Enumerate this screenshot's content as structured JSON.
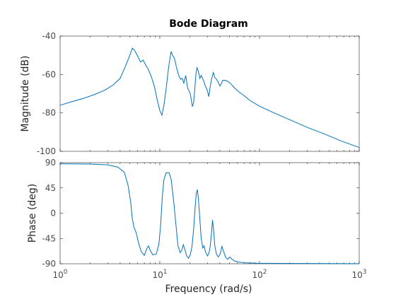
{
  "chart_data": {
    "type": "line",
    "title": "Bode Diagram",
    "xlabel": "Frequency  (rad/s)",
    "x_scale": "log",
    "xlim": [
      1,
      1000
    ],
    "x_ticks": [
      {
        "value": 1,
        "mantissa": "10",
        "exponent": "0"
      },
      {
        "value": 10,
        "mantissa": "10",
        "exponent": "1"
      },
      {
        "value": 100,
        "mantissa": "10",
        "exponent": "2"
      },
      {
        "value": 1000,
        "mantissa": "10",
        "exponent": "3"
      }
    ],
    "grid": false,
    "line_color": "#0072BD",
    "subplots": [
      {
        "name": "magnitude",
        "ylabel": "Magnitude (dB)",
        "ylim": [
          -100,
          -40
        ],
        "y_ticks": [
          "-100",
          "-80",
          "-60",
          "-40"
        ],
        "points": [
          [
            1,
            -76
          ],
          [
            1.3,
            -74.2
          ],
          [
            1.7,
            -72.5
          ],
          [
            2.2,
            -70.5
          ],
          [
            2.8,
            -68.2
          ],
          [
            3.4,
            -65.5
          ],
          [
            4,
            -62
          ],
          [
            4.5,
            -56
          ],
          [
            5,
            -50
          ],
          [
            5.3,
            -46.3
          ],
          [
            5.6,
            -47.5
          ],
          [
            6,
            -50.5
          ],
          [
            6.4,
            -53.5
          ],
          [
            6.8,
            -52.5
          ],
          [
            7.2,
            -55
          ],
          [
            7.6,
            -57
          ],
          [
            8.2,
            -61
          ],
          [
            8.8,
            -66
          ],
          [
            9.4,
            -73
          ],
          [
            10,
            -78.8
          ],
          [
            10.5,
            -81.2
          ],
          [
            11,
            -76
          ],
          [
            11.6,
            -67
          ],
          [
            12.2,
            -57
          ],
          [
            12.6,
            -52
          ],
          [
            13,
            -48
          ],
          [
            13.4,
            -50
          ],
          [
            14,
            -51.5
          ],
          [
            14.8,
            -57
          ],
          [
            15.6,
            -61
          ],
          [
            16.2,
            -62.5
          ],
          [
            16.8,
            -62
          ],
          [
            17.4,
            -64.5
          ],
          [
            18.2,
            -60.5
          ],
          [
            19,
            -67
          ],
          [
            19.6,
            -68.5
          ],
          [
            20.2,
            -70
          ],
          [
            20.8,
            -74
          ],
          [
            21.2,
            -76.5
          ],
          [
            21.8,
            -75
          ],
          [
            22.4,
            -68
          ],
          [
            23,
            -60
          ],
          [
            23.6,
            -56.5
          ],
          [
            24.4,
            -58.5
          ],
          [
            25.2,
            -62
          ],
          [
            26,
            -60.5
          ],
          [
            26.8,
            -62
          ],
          [
            27.6,
            -63.5
          ],
          [
            28.4,
            -65.5
          ],
          [
            29.2,
            -67
          ],
          [
            30,
            -68.5
          ],
          [
            31,
            -71.5
          ],
          [
            32,
            -66.5
          ],
          [
            33.2,
            -62
          ],
          [
            34.4,
            -59
          ],
          [
            35.6,
            -61.5
          ],
          [
            37,
            -62.5
          ],
          [
            38.6,
            -64
          ],
          [
            40,
            -66
          ],
          [
            41.2,
            -65
          ],
          [
            42.8,
            -63
          ],
          [
            45,
            -63
          ],
          [
            48,
            -63.5
          ],
          [
            52,
            -65
          ],
          [
            56,
            -67
          ],
          [
            62,
            -69
          ],
          [
            70,
            -71
          ],
          [
            80,
            -73.5
          ],
          [
            100,
            -76.5
          ],
          [
            140,
            -80
          ],
          [
            200,
            -83.5
          ],
          [
            300,
            -87.5
          ],
          [
            450,
            -91
          ],
          [
            650,
            -94.5
          ],
          [
            1000,
            -98
          ]
        ]
      },
      {
        "name": "phase",
        "ylabel": "Phase (deg)",
        "ylim": [
          -90,
          90
        ],
        "y_ticks": [
          "-90",
          "-45",
          "0",
          "45",
          "90"
        ],
        "points": [
          [
            1,
            88
          ],
          [
            2,
            87.5
          ],
          [
            3,
            86
          ],
          [
            3.8,
            82
          ],
          [
            4.4,
            73
          ],
          [
            4.8,
            50
          ],
          [
            5.1,
            20
          ],
          [
            5.3,
            -10
          ],
          [
            5.5,
            -25
          ],
          [
            5.8,
            -35
          ],
          [
            6.1,
            -52
          ],
          [
            6.5,
            -68
          ],
          [
            7,
            -75
          ],
          [
            7.4,
            -63
          ],
          [
            7.7,
            -58
          ],
          [
            8,
            -66
          ],
          [
            8.5,
            -74
          ],
          [
            9.2,
            -73
          ],
          [
            9.8,
            -55
          ],
          [
            10.2,
            -20
          ],
          [
            10.6,
            30
          ],
          [
            11,
            60
          ],
          [
            11.6,
            72
          ],
          [
            12.4,
            72
          ],
          [
            13,
            60
          ],
          [
            13.8,
            20
          ],
          [
            14.5,
            -20
          ],
          [
            15.2,
            -58
          ],
          [
            16,
            -70
          ],
          [
            16.6,
            -66
          ],
          [
            17.2,
            -56
          ],
          [
            17.8,
            -64
          ],
          [
            18.6,
            -76
          ],
          [
            19.4,
            -80
          ],
          [
            20.2,
            -74
          ],
          [
            21,
            -60
          ],
          [
            21.8,
            -30
          ],
          [
            22.6,
            10
          ],
          [
            23.2,
            35
          ],
          [
            23.8,
            42
          ],
          [
            24.4,
            25
          ],
          [
            25.2,
            -10
          ],
          [
            26,
            -45
          ],
          [
            27,
            -62
          ],
          [
            27.8,
            -58
          ],
          [
            28.6,
            -68
          ],
          [
            30,
            -76
          ],
          [
            31,
            -72
          ],
          [
            32,
            -60
          ],
          [
            33,
            -35
          ],
          [
            33.8,
            -12
          ],
          [
            34.6,
            -30
          ],
          [
            35.6,
            -58
          ],
          [
            37,
            -73
          ],
          [
            38.6,
            -78
          ],
          [
            40.4,
            -72
          ],
          [
            42,
            -59
          ],
          [
            43.6,
            -68
          ],
          [
            45.6,
            -78
          ],
          [
            48,
            -82
          ],
          [
            50.4,
            -78
          ],
          [
            53,
            -82
          ],
          [
            56,
            -85
          ],
          [
            62,
            -87
          ],
          [
            75,
            -88.5
          ],
          [
            100,
            -89.2
          ],
          [
            300,
            -89.6
          ],
          [
            1000,
            -89.8
          ]
        ]
      }
    ]
  }
}
